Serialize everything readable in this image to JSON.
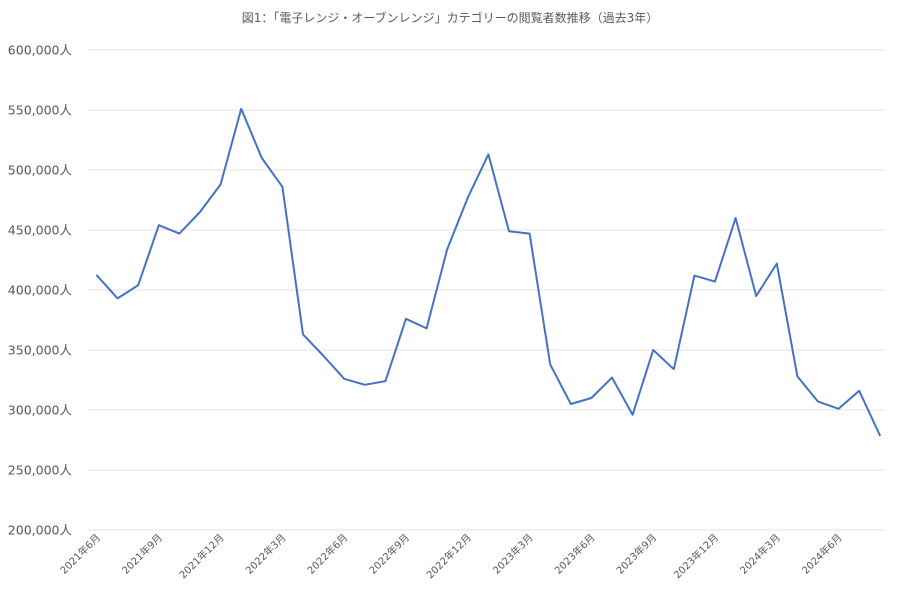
{
  "chart_data": {
    "type": "line",
    "title": "図1：「電子レンジ・オーブンレンジ」カテゴリーの閲覧者数推移（過去3年）",
    "xlabel": "",
    "ylabel": "",
    "y_unit": "人",
    "ylim": [
      200000,
      600000
    ],
    "yticks": [
      200000,
      250000,
      300000,
      350000,
      400000,
      450000,
      500000,
      550000,
      600000
    ],
    "ytick_labels": [
      "200,000人",
      "250,000人",
      "300,000人",
      "350,000人",
      "400,000人",
      "450,000人",
      "500,000人",
      "550,000人",
      "600,000人"
    ],
    "x": [
      "2021-06",
      "2021-07",
      "2021-08",
      "2021-09",
      "2021-10",
      "2021-11",
      "2021-12",
      "2022-01",
      "2022-02",
      "2022-03",
      "2022-04",
      "2022-05",
      "2022-06",
      "2022-07",
      "2022-08",
      "2022-09",
      "2022-10",
      "2022-11",
      "2022-12",
      "2023-01",
      "2023-02",
      "2023-03",
      "2023-04",
      "2023-05",
      "2023-06",
      "2023-07",
      "2023-08",
      "2023-09",
      "2023-10",
      "2023-11",
      "2023-12",
      "2024-01",
      "2024-02",
      "2024-03",
      "2024-04",
      "2024-05",
      "2024-06",
      "2024-07",
      "2024-08"
    ],
    "xtick_labels": [
      {
        "x": "2021-06",
        "label": "2021年6月"
      },
      {
        "x": "2021-09",
        "label": "2021年9月"
      },
      {
        "x": "2021-12",
        "label": "2021年12月"
      },
      {
        "x": "2022-03",
        "label": "2022年3月"
      },
      {
        "x": "2022-06",
        "label": "2022年6月"
      },
      {
        "x": "2022-09",
        "label": "2022年9月"
      },
      {
        "x": "2022-12",
        "label": "2022年12月"
      },
      {
        "x": "2023-03",
        "label": "2023年3月"
      },
      {
        "x": "2023-06",
        "label": "2023年6月"
      },
      {
        "x": "2023-09",
        "label": "2023年9月"
      },
      {
        "x": "2023-12",
        "label": "2023年12月"
      },
      {
        "x": "2024-03",
        "label": "2024年3月"
      },
      {
        "x": "2024-06",
        "label": "2024年6月"
      }
    ],
    "series": [
      {
        "values": [
          412000,
          393000,
          404000,
          454000,
          447000,
          465000,
          488000,
          551000,
          510000,
          486000,
          363000,
          345000,
          326000,
          321000,
          324000,
          376000,
          368000,
          434000,
          477000,
          513000,
          449000,
          447000,
          338000,
          305000,
          310000,
          327000,
          296000,
          350000,
          334000,
          412000,
          407000,
          460000,
          395000,
          422000,
          328000,
          307000,
          301000,
          316000,
          279000
        ],
        "color": "#4472c4"
      }
    ],
    "grid": true,
    "legend": "none"
  }
}
